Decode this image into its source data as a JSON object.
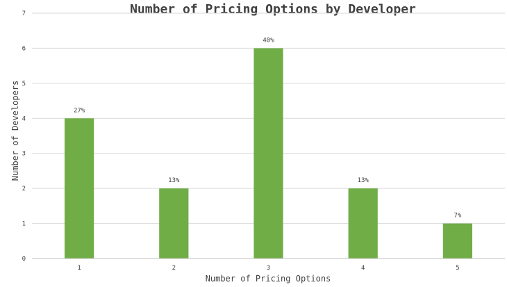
{
  "chart_data": {
    "type": "bar",
    "title": "Number of Pricing Options by Developer",
    "xlabel": "Number of Pricing Options",
    "ylabel": "Number of Developers",
    "categories": [
      "1",
      "2",
      "3",
      "4",
      "5"
    ],
    "values": [
      4,
      2,
      6,
      2,
      1
    ],
    "data_labels": [
      "27%",
      "13%",
      "40%",
      "13%",
      "7%"
    ],
    "ylim": [
      0,
      7
    ],
    "yticks": [
      "0",
      "1",
      "2",
      "3",
      "4",
      "5",
      "6",
      "7"
    ],
    "grid": true,
    "bar_color": "#70ad47"
  }
}
